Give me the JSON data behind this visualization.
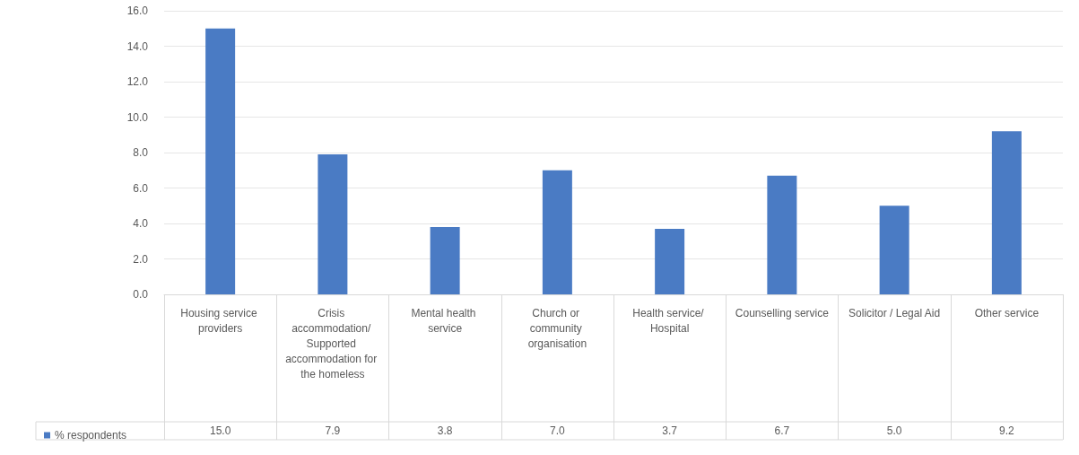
{
  "chart_data": {
    "type": "bar",
    "categories": [
      "Housing service providers",
      "Crisis accommodation/ Supported accommodation for the homeless",
      "Mental health service",
      "Church or community organisation",
      "Health service/ Hospital",
      "Counselling service",
      "Solicitor / Legal Aid",
      "Other service"
    ],
    "series": [
      {
        "name": "% respondents",
        "color": "#4a7bc4",
        "values": [
          15.0,
          7.9,
          3.8,
          7.0,
          3.7,
          6.7,
          5.0,
          9.2
        ],
        "value_labels": [
          "15.0",
          "7.9",
          "3.8",
          "7.0",
          "3.7",
          "6.7",
          "5.0",
          "9.2"
        ]
      }
    ],
    "ylim": [
      0,
      16
    ],
    "yticks": [
      {
        "value": 0,
        "label": "0.0"
      },
      {
        "value": 2,
        "label": "2.0"
      },
      {
        "value": 4,
        "label": "4.0"
      },
      {
        "value": 6,
        "label": "6.0"
      },
      {
        "value": 8,
        "label": "8.0"
      },
      {
        "value": 10,
        "label": "10.0"
      },
      {
        "value": 12,
        "label": "12.0"
      },
      {
        "value": 14,
        "label": "14.0"
      },
      {
        "value": 16,
        "label": "16.0"
      }
    ],
    "grid": "y",
    "legend": "bottom left"
  }
}
